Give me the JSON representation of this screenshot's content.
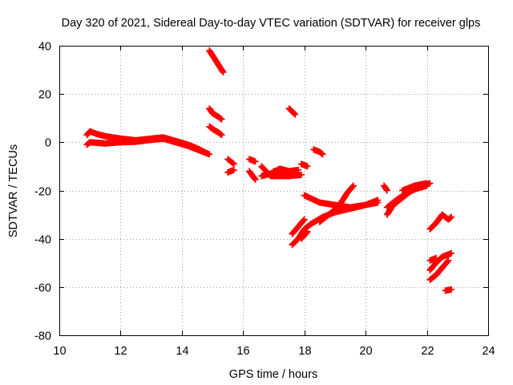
{
  "chart_data": {
    "type": "scatter",
    "title": "Day 320 of 2021, Sidereal Day-to-day VTEC variation (SDTVAR) for receiver glps",
    "xlabel": "GPS time / hours",
    "ylabel": "SDTVAR / TECUs",
    "xlim": [
      10,
      24
    ],
    "ylim": [
      -80,
      40
    ],
    "xticks": [
      "10",
      "12",
      "14",
      "16",
      "18",
      "20",
      "22",
      "24"
    ],
    "yticks": [
      "40",
      "20",
      "0",
      "-20",
      "-40",
      "-60",
      "-80"
    ],
    "grid": true,
    "marker": "+",
    "color": "#ff0000",
    "series": [
      {
        "values": [
          [
            10.9,
            3.0
          ],
          [
            11.0,
            4.5
          ],
          [
            11.2,
            3.5
          ],
          [
            11.5,
            2.5
          ],
          [
            12.0,
            1.5
          ],
          [
            12.5,
            0.8
          ],
          [
            13.0,
            1.5
          ],
          [
            13.4,
            2.0
          ],
          [
            13.8,
            0.5
          ],
          [
            14.2,
            -1.0
          ],
          [
            14.5,
            -2.5
          ],
          [
            14.8,
            -4.5
          ]
        ]
      },
      {
        "values": [
          [
            10.9,
            -1.0
          ],
          [
            11.0,
            0.0
          ],
          [
            11.5,
            -0.5
          ],
          [
            12.0,
            0.0
          ],
          [
            12.5,
            0.2
          ],
          [
            13.0,
            1.0
          ],
          [
            13.4,
            1.5
          ],
          [
            13.8,
            0.0
          ],
          [
            14.2,
            -1.5
          ],
          [
            14.6,
            -3.5
          ],
          [
            14.9,
            -5.0
          ]
        ]
      },
      {
        "values": [
          [
            14.9,
            38.0
          ],
          [
            15.0,
            36.0
          ],
          [
            15.2,
            32.0
          ],
          [
            15.35,
            29.0
          ]
        ]
      },
      {
        "values": [
          [
            14.9,
            14.0
          ],
          [
            15.0,
            12.0
          ],
          [
            15.2,
            10.5
          ],
          [
            15.3,
            9.5
          ]
        ]
      },
      {
        "values": [
          [
            14.9,
            6.5
          ],
          [
            15.0,
            5.5
          ],
          [
            15.2,
            4.0
          ],
          [
            15.3,
            3.0
          ]
        ]
      },
      {
        "values": [
          [
            15.5,
            -7.0
          ],
          [
            15.7,
            -9.0
          ]
        ]
      },
      {
        "values": [
          [
            15.5,
            -12.5
          ],
          [
            15.7,
            -11.5
          ]
        ]
      },
      {
        "values": [
          [
            16.2,
            -7.0
          ],
          [
            16.4,
            -8.0
          ]
        ]
      },
      {
        "values": [
          [
            16.2,
            -12.0
          ],
          [
            16.4,
            -15.5
          ]
        ]
      },
      {
        "values": [
          [
            16.6,
            -10.0
          ],
          [
            16.9,
            -14.0
          ],
          [
            17.2,
            -14.0
          ],
          [
            17.5,
            -14.0
          ],
          [
            17.9,
            -13.5
          ]
        ]
      },
      {
        "values": [
          [
            16.6,
            -14.0
          ],
          [
            16.9,
            -13.0
          ],
          [
            17.2,
            -11.0
          ],
          [
            17.5,
            -12.0
          ],
          [
            17.8,
            -11.5
          ]
        ]
      },
      {
        "values": [
          [
            17.0,
            -12.0
          ],
          [
            17.3,
            -12.0
          ],
          [
            17.6,
            -12.5
          ]
        ]
      },
      {
        "values": [
          [
            17.5,
            14.0
          ],
          [
            17.7,
            11.5
          ]
        ]
      },
      {
        "values": [
          [
            17.9,
            -9.0
          ],
          [
            18.1,
            -10.0
          ]
        ]
      },
      {
        "values": [
          [
            18.3,
            -3.0
          ],
          [
            18.5,
            -4.0
          ],
          [
            18.6,
            -5.0
          ]
        ]
      },
      {
        "values": [
          [
            17.6,
            -42.5
          ],
          [
            17.8,
            -40.0
          ],
          [
            18.0,
            -36.0
          ],
          [
            18.2,
            -34.0
          ]
        ]
      },
      {
        "values": [
          [
            17.6,
            -38.0
          ],
          [
            17.8,
            -35.0
          ],
          [
            18.0,
            -32.0
          ]
        ]
      },
      {
        "values": [
          [
            17.9,
            -40.0
          ],
          [
            18.1,
            -37.0
          ]
        ]
      },
      {
        "values": [
          [
            18.0,
            -22.0
          ],
          [
            18.5,
            -25.0
          ],
          [
            19.0,
            -26.0
          ],
          [
            19.5,
            -27.0
          ],
          [
            20.0,
            -26.0
          ],
          [
            20.4,
            -25.0
          ]
        ]
      },
      {
        "values": [
          [
            18.2,
            -34.0
          ],
          [
            18.6,
            -31.0
          ],
          [
            19.0,
            -29.0
          ],
          [
            19.5,
            -27.5
          ],
          [
            20.0,
            -26.0
          ],
          [
            20.4,
            -24.0
          ]
        ]
      },
      {
        "values": [
          [
            18.5,
            -33.0
          ],
          [
            18.9,
            -29.0
          ],
          [
            19.2,
            -25.0
          ],
          [
            19.4,
            -21.0
          ],
          [
            19.6,
            -18.0
          ]
        ]
      },
      {
        "values": [
          [
            20.6,
            -18.0
          ],
          [
            20.7,
            -20.0
          ]
        ]
      },
      {
        "values": [
          [
            20.7,
            -30.0
          ],
          [
            20.9,
            -26.0
          ],
          [
            21.2,
            -23.0
          ],
          [
            21.5,
            -20.0
          ],
          [
            21.8,
            -18.5
          ],
          [
            22.1,
            -17.0
          ]
        ]
      },
      {
        "values": [
          [
            20.7,
            -27.0
          ],
          [
            21.0,
            -24.0
          ],
          [
            21.3,
            -21.5
          ],
          [
            21.6,
            -19.5
          ],
          [
            22.0,
            -18.0
          ]
        ]
      },
      {
        "values": [
          [
            21.2,
            -20.0
          ],
          [
            21.6,
            -18.0
          ],
          [
            22.0,
            -17.0
          ]
        ]
      },
      {
        "values": [
          [
            22.1,
            -36.0
          ],
          [
            22.3,
            -33.5
          ],
          [
            22.5,
            -30.0
          ],
          [
            22.7,
            -32.0
          ],
          [
            22.8,
            -31.0
          ]
        ]
      },
      {
        "values": [
          [
            22.1,
            -53.0
          ],
          [
            22.3,
            -50.0
          ],
          [
            22.5,
            -47.5
          ],
          [
            22.7,
            -46.5
          ],
          [
            22.8,
            -46.0
          ]
        ]
      },
      {
        "values": [
          [
            22.1,
            -57.0
          ],
          [
            22.3,
            -55.0
          ],
          [
            22.5,
            -52.0
          ],
          [
            22.7,
            -49.0
          ]
        ]
      },
      {
        "values": [
          [
            22.1,
            -49.0
          ],
          [
            22.3,
            -48.0
          ]
        ]
      },
      {
        "values": [
          [
            22.6,
            -61.5
          ],
          [
            22.8,
            -61.0
          ]
        ]
      }
    ]
  }
}
